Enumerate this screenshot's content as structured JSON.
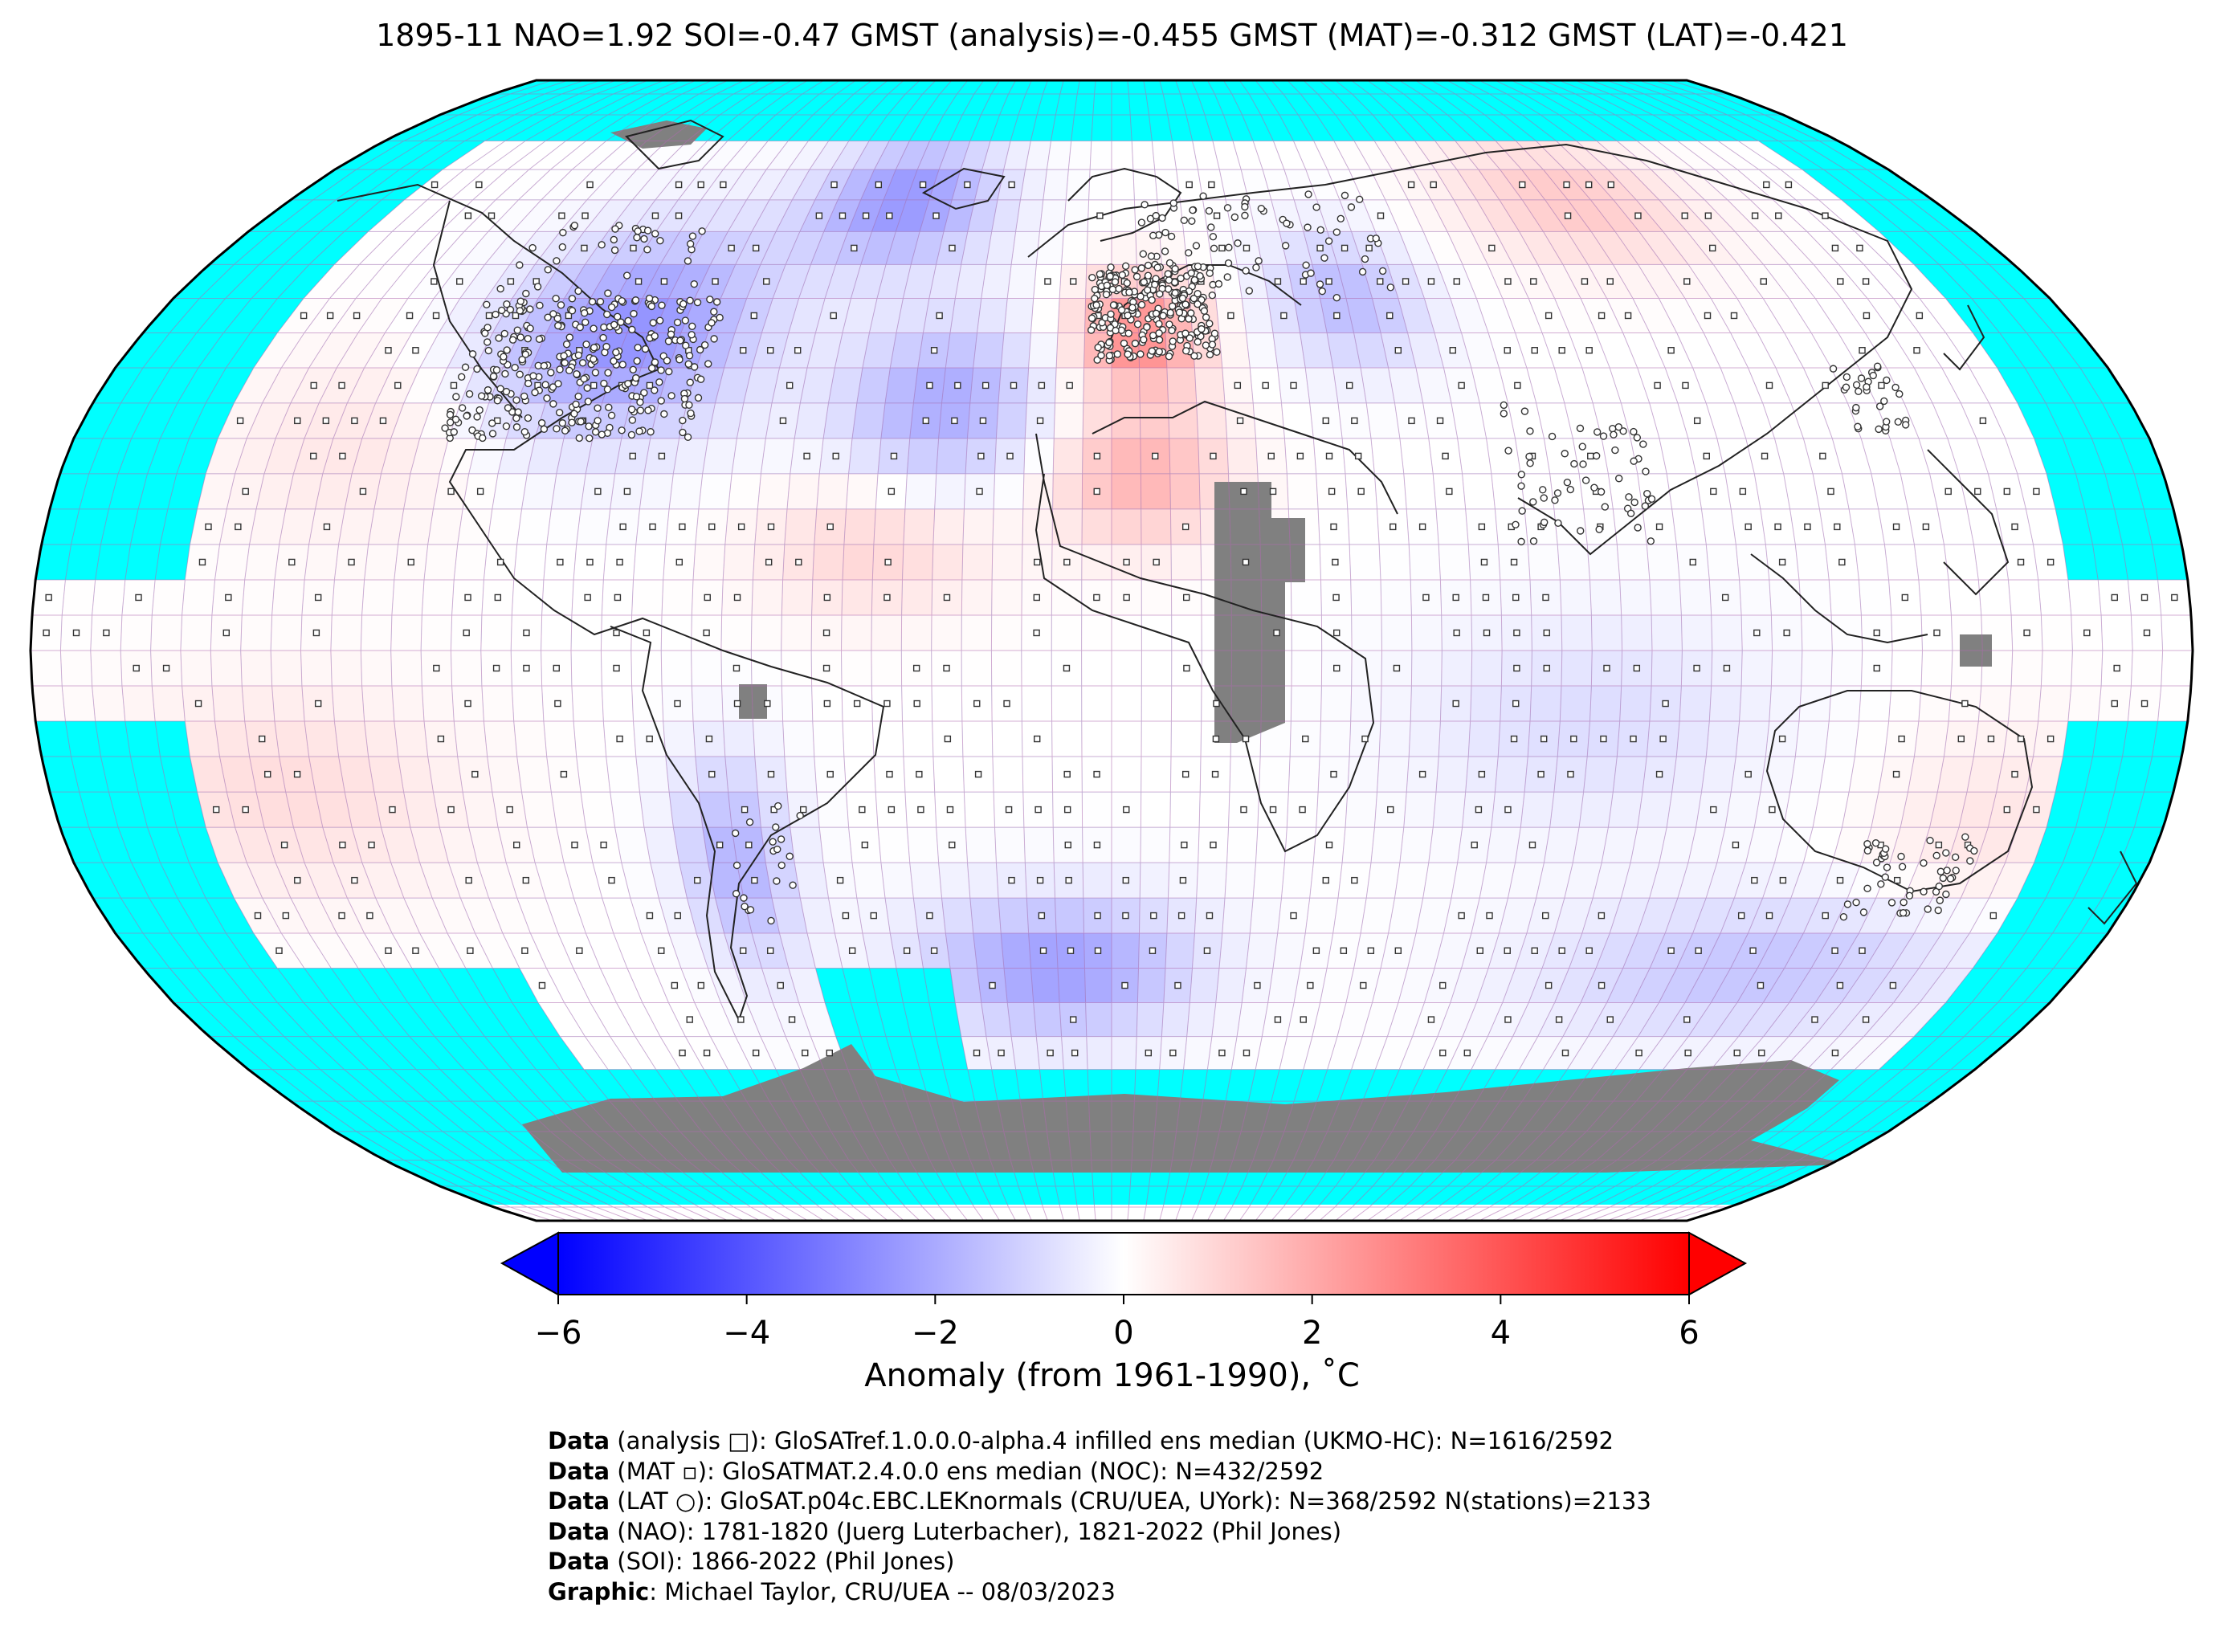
{
  "title": "1895-11 NAO=1.92 SOI=-0.47 GMST (analysis)=-0.455 GMST (MAT)=-0.312 GMST (LAT)=-0.421",
  "colorbar": {
    "label": "Anomaly (from 1961-1990), ˚C",
    "ticks": [
      "−6",
      "−4",
      "−2",
      "0",
      "2",
      "4",
      "6"
    ],
    "tick_values": [
      -6,
      -4,
      -2,
      0,
      2,
      4,
      6
    ],
    "min": -6,
    "max": 6,
    "colors": {
      "low": "#0000ff",
      "mid": "#ffffff",
      "high": "#ff0000"
    }
  },
  "map": {
    "projection": "Robinson",
    "colors": {
      "ocean_no_data": "#00ffff",
      "land_no_data": "#808080",
      "grid": "#b06ab0"
    },
    "anomaly_regions": [
      {
        "region": "North America",
        "value": -2.5
      },
      {
        "region": "Greenland",
        "value": -2.5
      },
      {
        "region": "North Atlantic",
        "value": -2.0
      },
      {
        "region": "Western Europe",
        "value": 2.5
      },
      {
        "region": "North Africa",
        "value": 1.8
      },
      {
        "region": "Eastern Europe",
        "value": -1.5
      },
      {
        "region": "Northern Siberia",
        "value": 1.2
      },
      {
        "region": "South Atlantic",
        "value": -2.3
      },
      {
        "region": "South Pacific",
        "value": 0.8
      },
      {
        "region": "Australia",
        "value": 0.5
      }
    ]
  },
  "credits": [
    {
      "bold": "Data",
      "text": " (analysis □): GloSATref.1.0.0.0-alpha.4 infilled ens median (UKMO-HC): N=1616/2592"
    },
    {
      "bold": "Data",
      "text": " (MAT ▫): GloSATMAT.2.4.0.0 ens median (NOC): N=432/2592"
    },
    {
      "bold": "Data",
      "text": " (LAT ○): GloSAT.p04c.EBC.LEKnormals (CRU/UEA, UYork): N=368/2592 N(stations)=2133"
    },
    {
      "bold": "Data",
      "text": " (NAO): 1781-1820 (Juerg Luterbacher), 1821-2022 (Phil Jones)"
    },
    {
      "bold": "Data",
      "text": " (SOI): 1866-2022 (Phil Jones)"
    },
    {
      "bold": "Graphic",
      "text": ": Michael Taylor, CRU/UEA -- 08/03/2023"
    }
  ]
}
